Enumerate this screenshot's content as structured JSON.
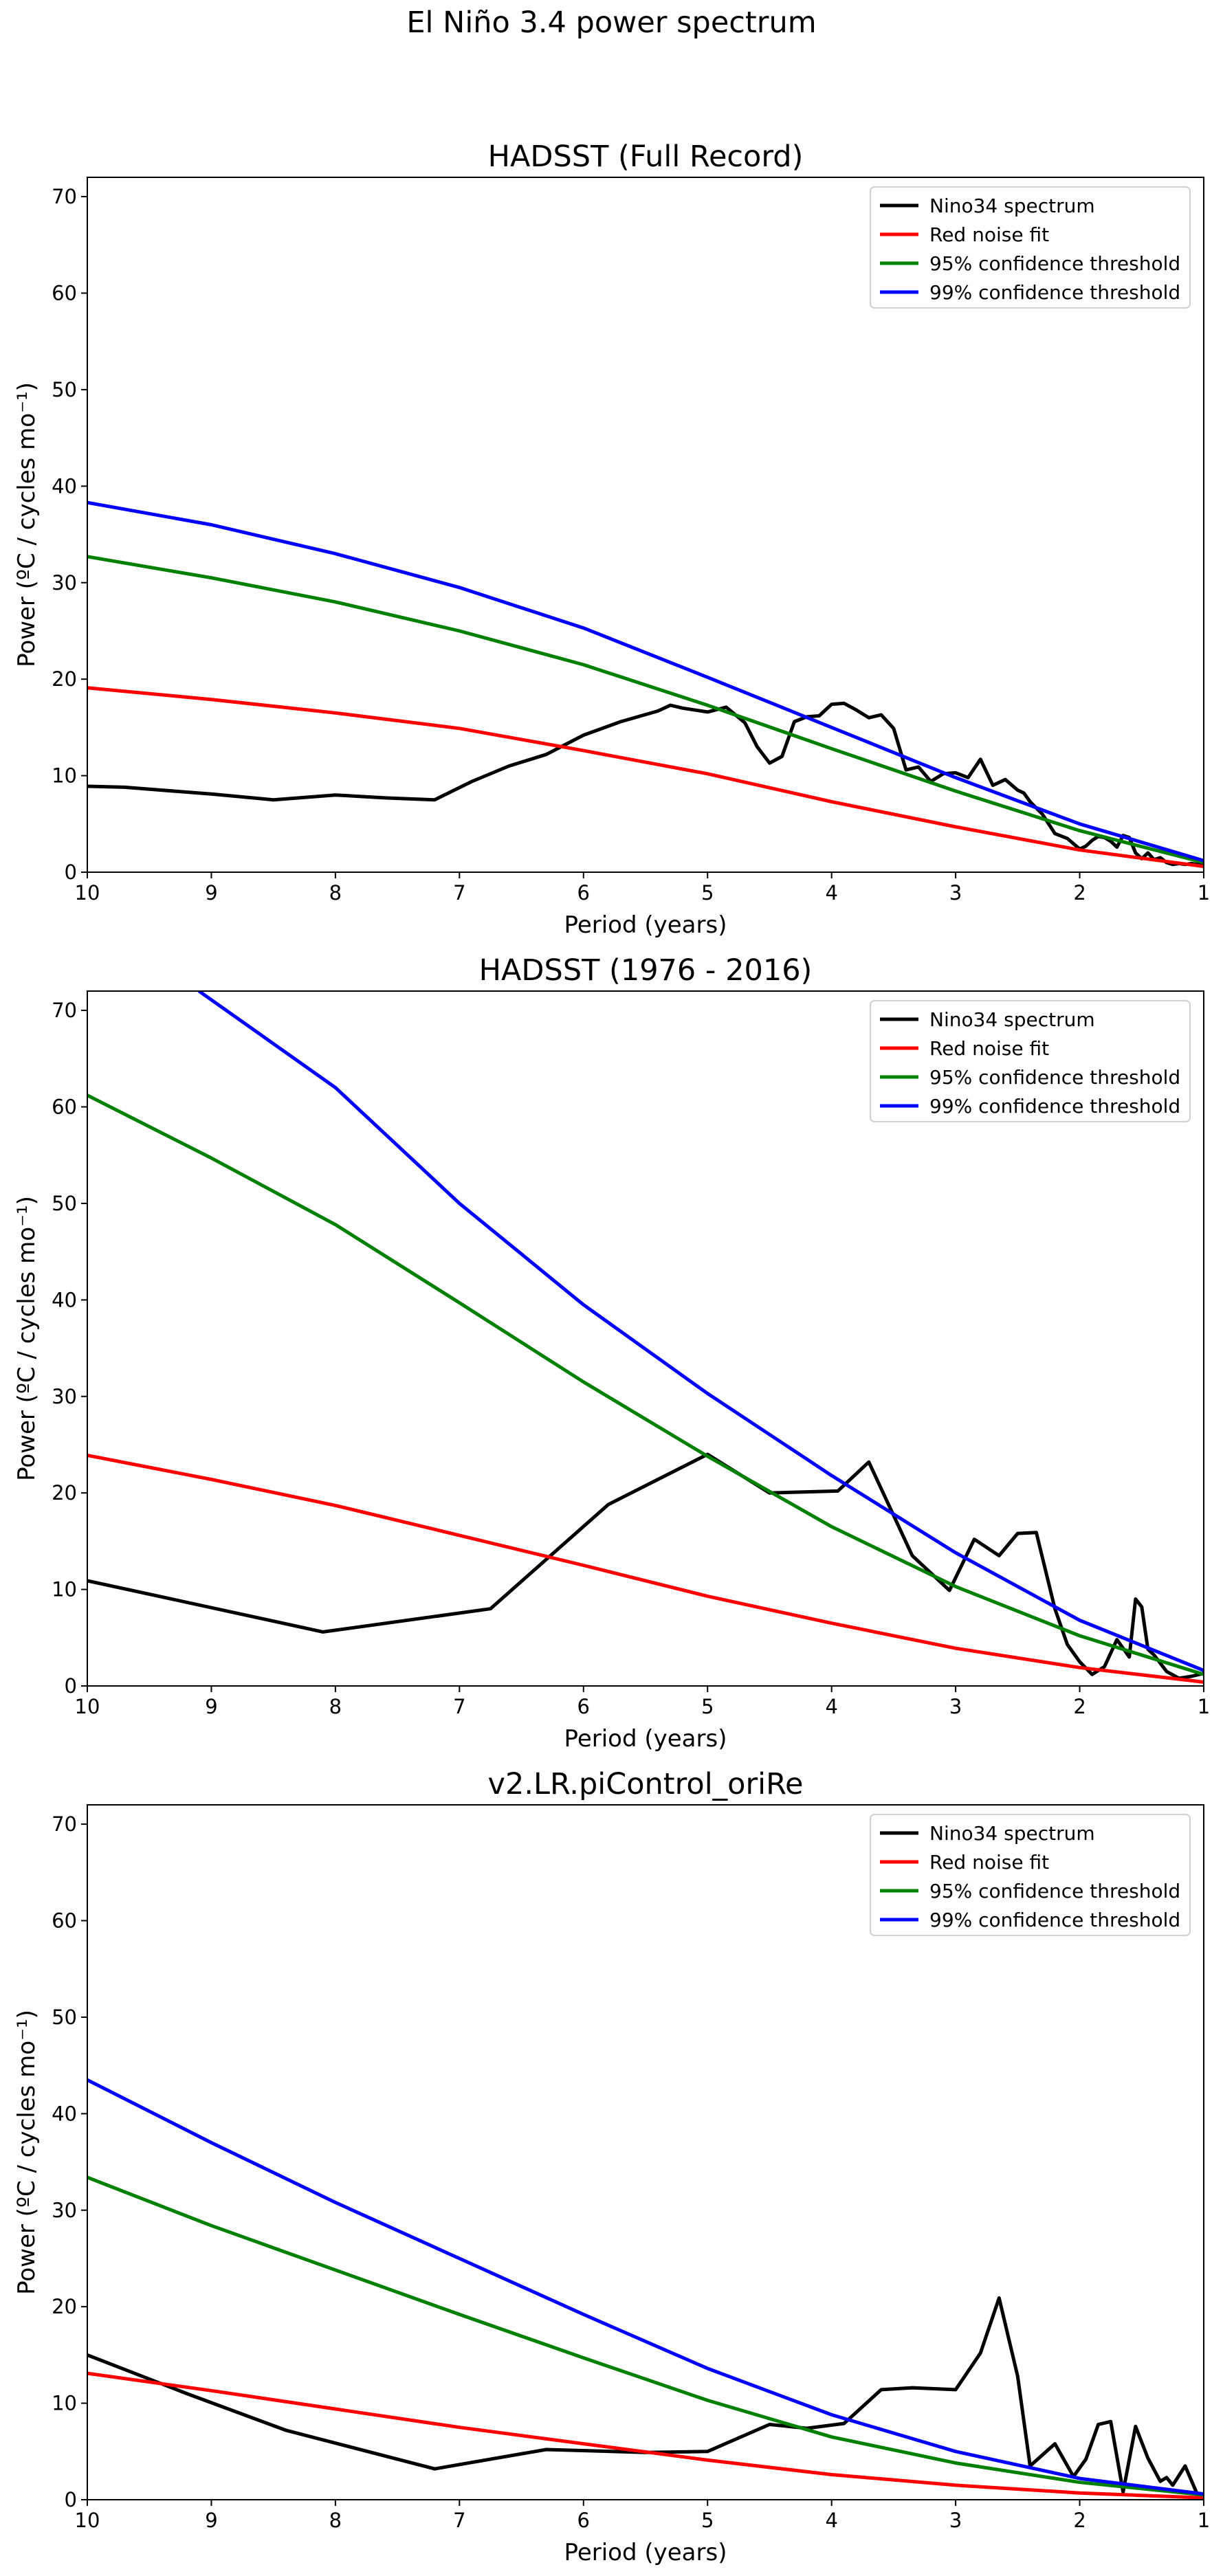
{
  "suptitle": "El Niño 3.4 power spectrum",
  "colors": {
    "Nino34 spectrum": "#000000",
    "Red noise fit": "#ff0000",
    "95% confidence threshold": "#008000",
    "99% confidence threshold": "#0000ff"
  },
  "chart_data": [
    {
      "type": "line",
      "title": "HADSST (Full Record)",
      "xlabel": "Period (years)",
      "ylabel": "Power (ºC / cycles mo⁻¹)",
      "xlim": [
        10,
        1
      ],
      "ylim": [
        0,
        72
      ],
      "xticks": [
        10,
        9,
        8,
        7,
        6,
        5,
        4,
        3,
        2,
        1
      ],
      "yticks": [
        0,
        10,
        20,
        30,
        40,
        50,
        60,
        70
      ],
      "legend": "top-right",
      "grid": false,
      "series": [
        {
          "name": "Nino34 spectrum",
          "x": [
            10,
            9.7,
            9.0,
            8.5,
            8.0,
            7.6,
            7.2,
            6.9,
            6.6,
            6.3,
            6.0,
            5.7,
            5.4,
            5.3,
            5.2,
            5.0,
            4.85,
            4.7,
            4.6,
            4.5,
            4.4,
            4.3,
            4.2,
            4.1,
            4.0,
            3.9,
            3.8,
            3.7,
            3.6,
            3.5,
            3.4,
            3.3,
            3.2,
            3.1,
            3.0,
            2.9,
            2.8,
            2.7,
            2.6,
            2.5,
            2.45,
            2.4,
            2.3,
            2.2,
            2.1,
            2.0,
            1.95,
            1.9,
            1.85,
            1.8,
            1.75,
            1.7,
            1.65,
            1.6,
            1.55,
            1.5,
            1.45,
            1.4,
            1.35,
            1.3,
            1.25,
            1.2,
            1.15,
            1.1,
            1.05,
            1.0
          ],
          "y": [
            8.9,
            8.8,
            8.1,
            7.5,
            8.0,
            7.7,
            7.5,
            9.4,
            11.0,
            12.2,
            14.2,
            15.6,
            16.7,
            17.3,
            17.0,
            16.6,
            17.1,
            15.5,
            13.0,
            11.3,
            12.0,
            15.6,
            16.1,
            16.2,
            17.4,
            17.5,
            16.8,
            16.0,
            16.3,
            14.9,
            10.6,
            10.9,
            9.4,
            10.2,
            10.3,
            9.8,
            11.7,
            9.0,
            9.6,
            8.5,
            8.2,
            7.3,
            6.0,
            4.0,
            3.5,
            2.4,
            2.7,
            3.3,
            3.7,
            3.6,
            3.2,
            2.6,
            3.8,
            3.6,
            2.0,
            1.4,
            2.0,
            1.3,
            1.5,
            1.0,
            0.8,
            0.9,
            0.8,
            0.9,
            0.8,
            0.9
          ]
        },
        {
          "name": "Red noise fit",
          "x": [
            10,
            9,
            8,
            7,
            6,
            5,
            4,
            3,
            2,
            1
          ],
          "y": [
            19.1,
            17.9,
            16.5,
            14.9,
            12.6,
            10.2,
            7.3,
            4.7,
            2.3,
            0.6
          ]
        },
        {
          "name": "95% confidence threshold",
          "x": [
            10,
            9,
            8,
            7,
            6,
            5,
            4,
            3,
            2,
            1
          ],
          "y": [
            32.7,
            30.5,
            28.0,
            25.0,
            21.5,
            17.3,
            12.8,
            8.4,
            4.3,
            1.0
          ]
        },
        {
          "name": "99% confidence threshold",
          "x": [
            10,
            9,
            8,
            7,
            6,
            5,
            4,
            3,
            2,
            1
          ],
          "y": [
            38.3,
            36.0,
            33.0,
            29.5,
            25.3,
            20.2,
            15.0,
            9.8,
            5.0,
            1.2
          ]
        }
      ]
    },
    {
      "type": "line",
      "title": "HADSST (1976 - 2016)",
      "xlabel": "Period (years)",
      "ylabel": "Power (ºC / cycles mo⁻¹)",
      "xlim": [
        10,
        1
      ],
      "ylim": [
        0,
        72
      ],
      "xticks": [
        10,
        9,
        8,
        7,
        6,
        5,
        4,
        3,
        2,
        1
      ],
      "yticks": [
        0,
        10,
        20,
        30,
        40,
        50,
        60,
        70
      ],
      "legend": "top-right",
      "grid": false,
      "series": [
        {
          "name": "Nino34 spectrum",
          "x": [
            10,
            8.1,
            6.75,
            5.8,
            5.0,
            4.5,
            3.95,
            3.7,
            3.35,
            3.05,
            2.85,
            2.65,
            2.5,
            2.35,
            2.2,
            2.1,
            2.0,
            1.9,
            1.8,
            1.7,
            1.6,
            1.55,
            1.5,
            1.45,
            1.4,
            1.3,
            1.2,
            1.1,
            1.0
          ],
          "y": [
            10.9,
            5.6,
            8.0,
            18.8,
            24.0,
            20.0,
            20.2,
            23.2,
            13.5,
            9.9,
            15.2,
            13.5,
            15.8,
            15.9,
            8.0,
            4.3,
            2.5,
            1.2,
            2.0,
            4.8,
            3.0,
            9.0,
            8.2,
            3.8,
            3.2,
            1.5,
            0.8,
            1.0,
            1.3
          ]
        },
        {
          "name": "Red noise fit",
          "x": [
            10,
            9,
            8,
            7,
            6,
            5,
            4,
            3,
            2,
            1
          ],
          "y": [
            23.9,
            21.4,
            18.7,
            15.6,
            12.5,
            9.3,
            6.5,
            3.9,
            1.9,
            0.4
          ]
        },
        {
          "name": "95% confidence threshold",
          "x": [
            10,
            9,
            8,
            7,
            6,
            5,
            4,
            3,
            2,
            1
          ],
          "y": [
            61.2,
            54.7,
            47.8,
            39.7,
            31.5,
            23.8,
            16.5,
            10.3,
            5.2,
            1.2
          ]
        },
        {
          "name": "99% confidence threshold",
          "x": [
            9.1,
            8,
            7,
            6,
            5,
            4,
            3,
            2,
            1
          ],
          "y": [
            72.0,
            62.0,
            50.0,
            39.5,
            30.3,
            21.8,
            13.8,
            6.8,
            1.6
          ]
        }
      ]
    },
    {
      "type": "line",
      "title": "v2.LR.piControl_oriRe",
      "xlabel": "Period (years)",
      "ylabel": "Power (ºC / cycles mo⁻¹)",
      "xlim": [
        10,
        1
      ],
      "ylim": [
        0,
        72
      ],
      "xticks": [
        10,
        9,
        8,
        7,
        6,
        5,
        4,
        3,
        2,
        1
      ],
      "yticks": [
        0,
        10,
        20,
        30,
        40,
        50,
        60,
        70
      ],
      "legend": "top-right",
      "grid": false,
      "series": [
        {
          "name": "Nino34 spectrum",
          "x": [
            10,
            9.2,
            8.4,
            7.2,
            6.3,
            5.5,
            5.0,
            4.5,
            4.2,
            3.9,
            3.6,
            3.35,
            3.0,
            2.8,
            2.65,
            2.5,
            2.4,
            2.2,
            2.05,
            1.95,
            1.85,
            1.75,
            1.65,
            1.55,
            1.45,
            1.35,
            1.3,
            1.25,
            1.15,
            1.05,
            1.0
          ],
          "y": [
            15.0,
            11.0,
            7.2,
            3.2,
            5.2,
            4.9,
            5.0,
            7.8,
            7.4,
            7.9,
            11.4,
            11.6,
            11.4,
            15.2,
            20.9,
            12.8,
            3.5,
            5.8,
            2.4,
            4.2,
            7.8,
            8.1,
            0.8,
            7.6,
            4.3,
            1.9,
            2.3,
            1.5,
            3.5,
            0.5,
            0.4
          ]
        },
        {
          "name": "Red noise fit",
          "x": [
            10,
            9,
            8,
            7,
            6,
            5,
            4,
            3,
            2,
            1
          ],
          "y": [
            13.1,
            11.3,
            9.4,
            7.5,
            5.8,
            4.1,
            2.6,
            1.5,
            0.7,
            0.2
          ]
        },
        {
          "name": "95% confidence threshold",
          "x": [
            10,
            9,
            8,
            7,
            6,
            5,
            4,
            3,
            2,
            1
          ],
          "y": [
            33.4,
            28.4,
            23.8,
            19.2,
            14.7,
            10.3,
            6.5,
            3.8,
            1.8,
            0.5
          ]
        },
        {
          "name": "99% confidence threshold",
          "x": [
            10,
            9,
            8,
            7,
            6,
            5,
            4,
            3,
            2,
            1
          ],
          "y": [
            43.5,
            37.0,
            30.8,
            25.0,
            19.2,
            13.6,
            8.8,
            5.0,
            2.2,
            0.6
          ]
        }
      ]
    }
  ]
}
